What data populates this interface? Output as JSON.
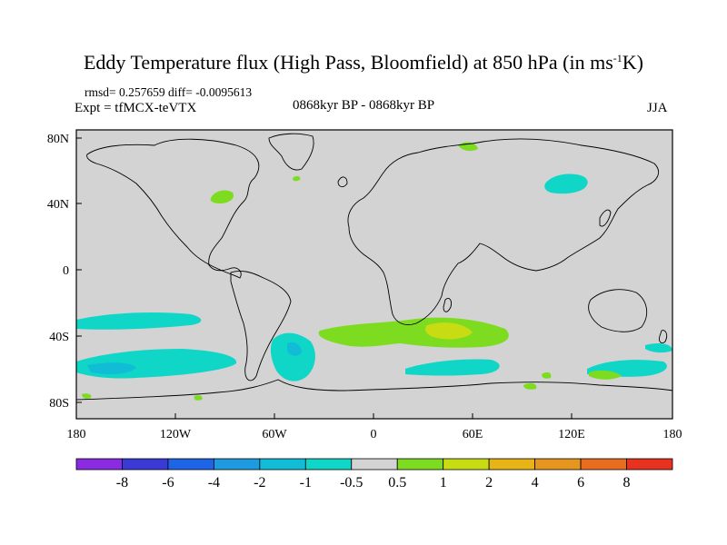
{
  "title": {
    "main": "Eddy Temperature flux (High Pass, Bloomfield) at 850 hPa (in ms",
    "superscript": "-1",
    "tail": "K)"
  },
  "stats_line": "rmsd= 0.257659 diff= -0.0095613",
  "expt_line": "Expt = tfMCX-teVTX",
  "period_line": "0868kyr BP - 0868kyr BP",
  "season": "JJA",
  "map": {
    "projection": "cylindrical-equidistant",
    "background_color": "#d3d3d3",
    "lat_ticks": [
      "80N",
      "40N",
      "0",
      "40S",
      "80S"
    ],
    "lon_ticks": [
      "180",
      "120W",
      "60W",
      "0",
      "60E",
      "120E",
      "180"
    ]
  },
  "colorbar": {
    "colors": [
      "#8a2be2",
      "#3a3ad6",
      "#1e64e6",
      "#1e9be0",
      "#10bcd6",
      "#10d6c8",
      "#d3d3d3",
      "#7ddc1f",
      "#c8dc14",
      "#e6b414",
      "#e6961e",
      "#e66e1e",
      "#e6321e"
    ],
    "labels": [
      "-8",
      "-6",
      "-4",
      "-2",
      "-1",
      "-0.5",
      "0.5",
      "1",
      "2",
      "4",
      "6",
      "8"
    ]
  }
}
